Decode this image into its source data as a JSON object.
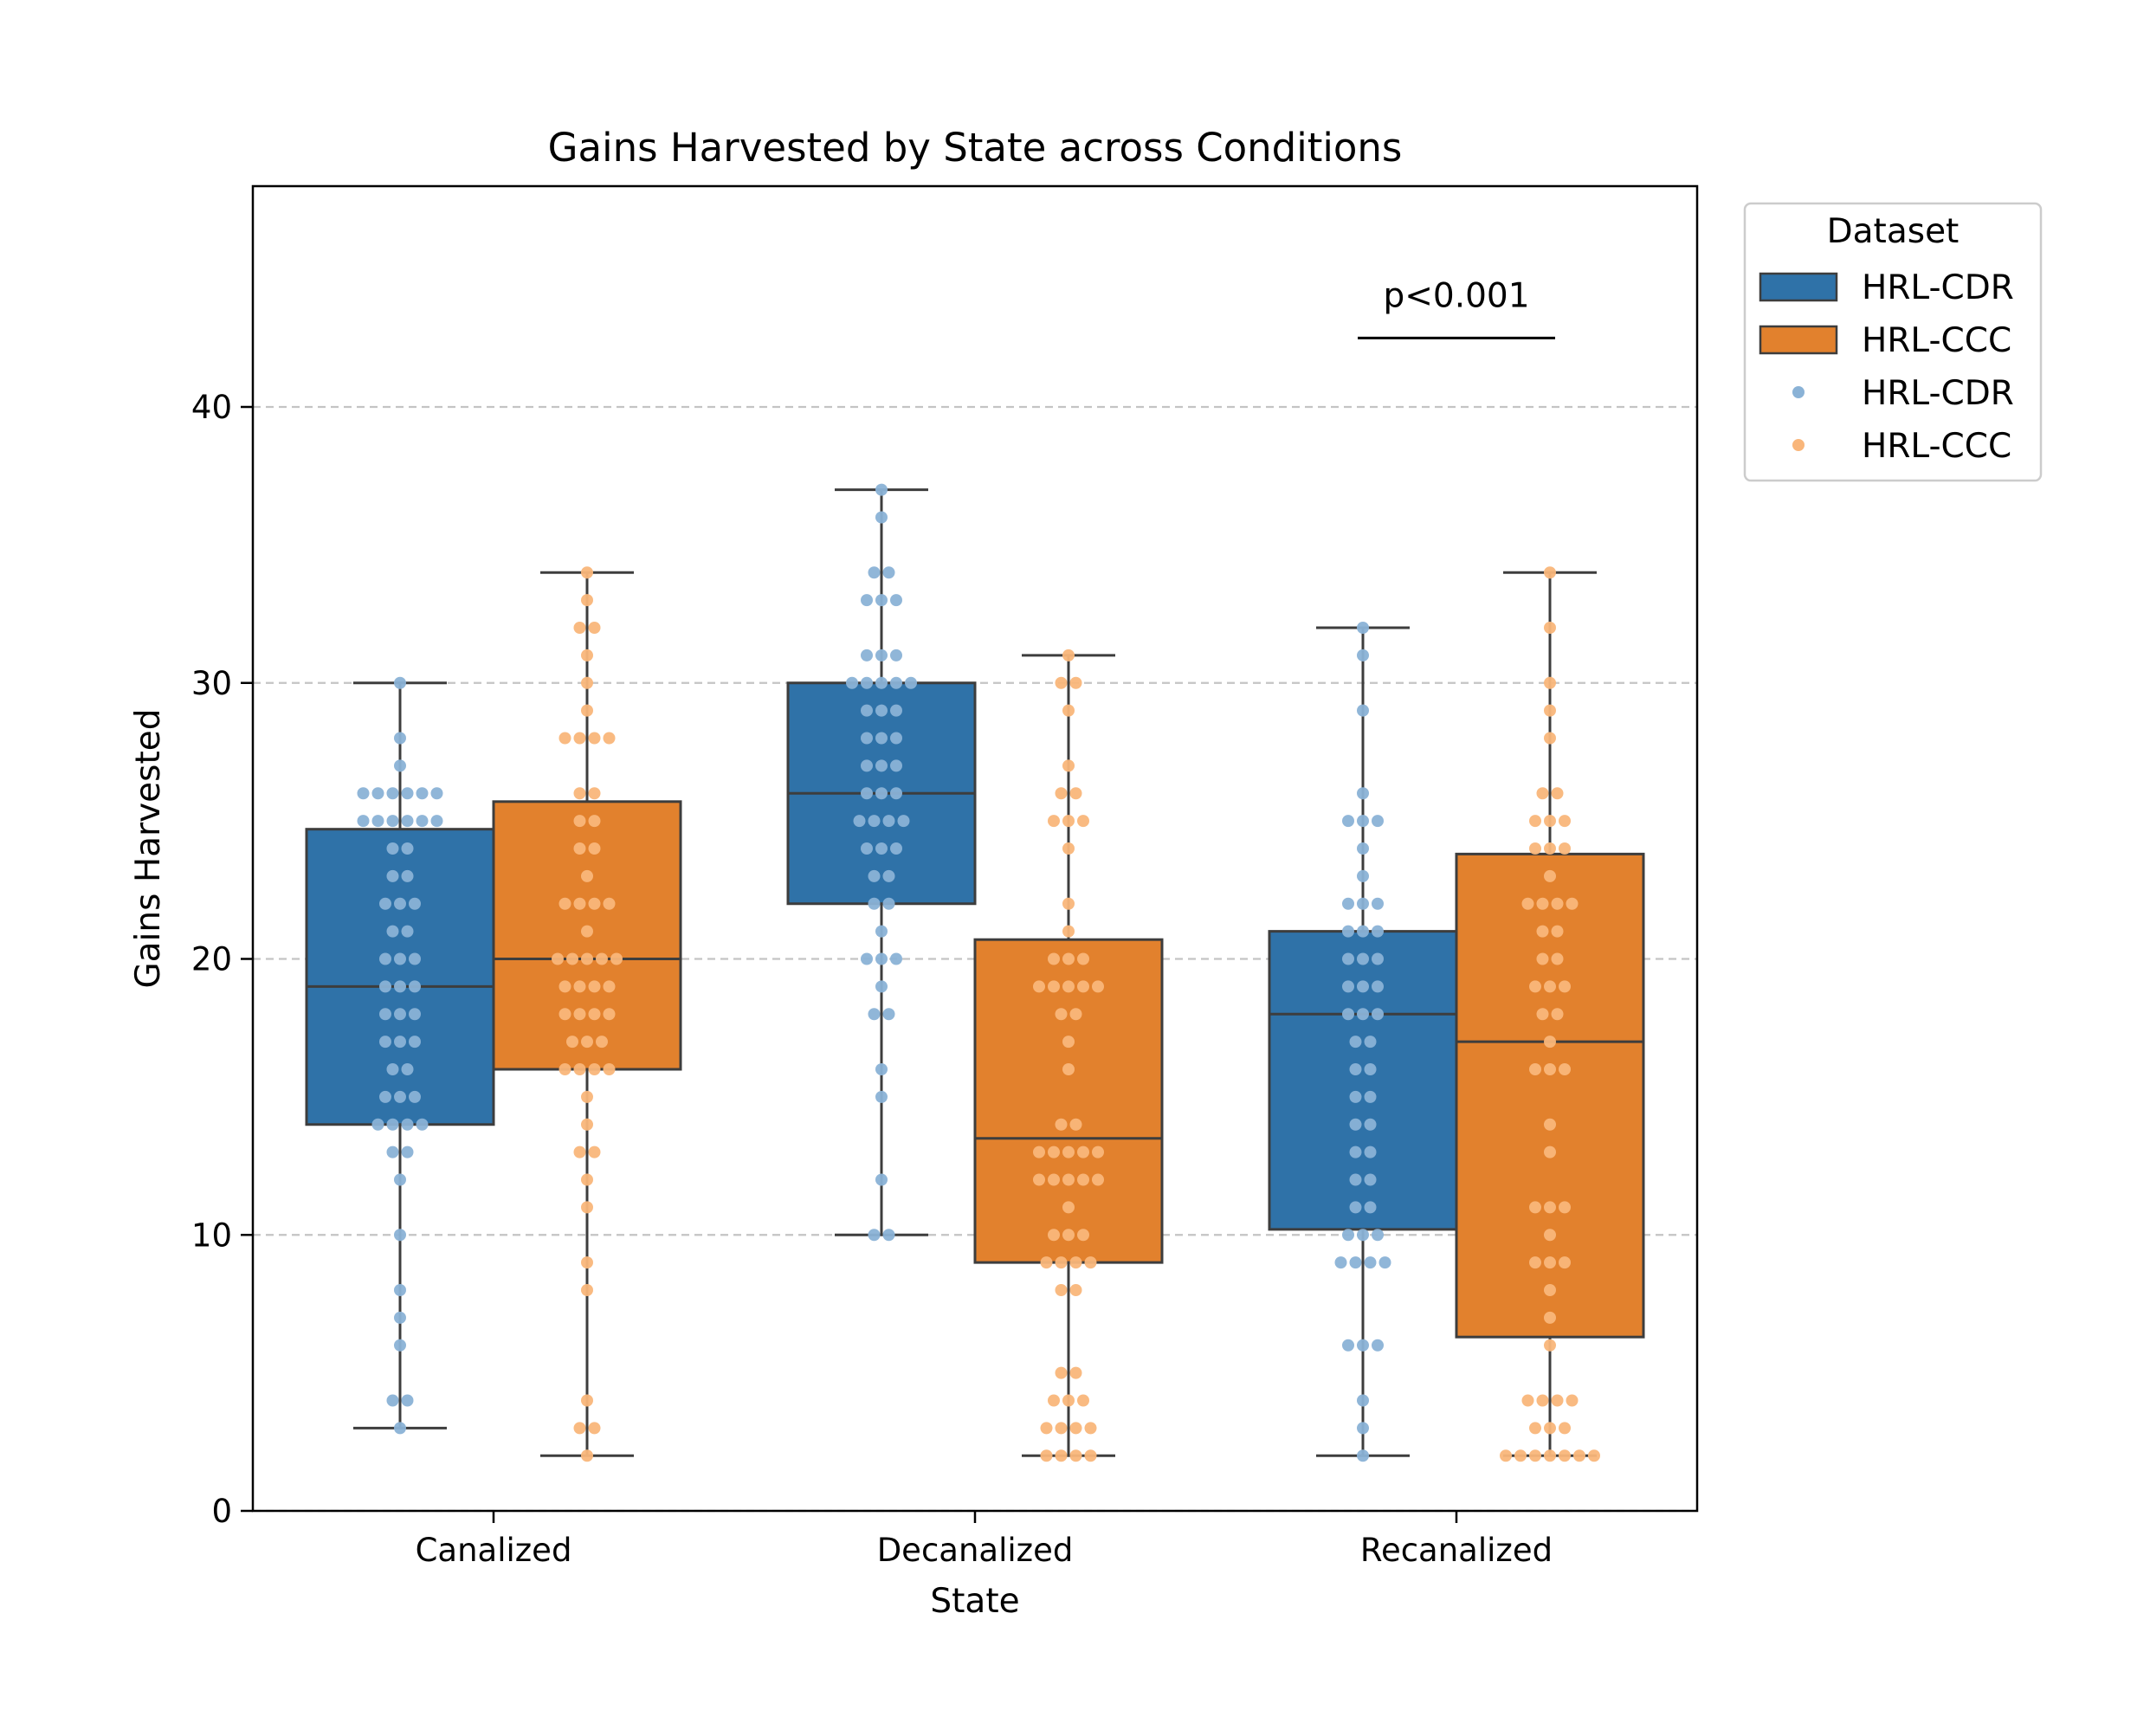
{
  "chart_data": {
    "type": "box",
    "title": "Gains Harvested by State across Conditions",
    "xlabel": "State",
    "ylabel": "Gains Harvested",
    "categories": [
      "Canalized",
      "Decanalized",
      "Recanalized"
    ],
    "ylim": [
      0,
      48
    ],
    "yticks": [
      0,
      10,
      20,
      30,
      40
    ],
    "grid": "y-dashed",
    "legend": {
      "title": "Dataset",
      "placement": "outside-top-right",
      "entries": [
        {
          "label": "HRL-CDR",
          "kind": "box"
        },
        {
          "label": "HRL-CCC",
          "kind": "box"
        },
        {
          "label": "HRL-CDR",
          "kind": "point"
        },
        {
          "label": "HRL-CCC",
          "kind": "point"
        }
      ]
    },
    "annotation": {
      "text": "p<0.001",
      "category": "Recanalized",
      "y": 42.5
    },
    "colors": {
      "box_cdr": "#2f72a8",
      "box_ccc": "#e2812d",
      "point_cdr": "#8ab2d6",
      "point_ccc": "#f9b67a",
      "edge": "#3d3d3d",
      "grid": "#c4c4c4"
    },
    "series": [
      {
        "name": "HRL-CDR",
        "boxes": [
          {
            "category": "Canalized",
            "whisker_low": 3,
            "q1": 14,
            "median": 19,
            "q3": 24.7,
            "whisker_high": 30,
            "points": [
              3,
              4,
              4,
              6,
              7,
              8,
              10,
              12,
              13,
              13,
              14,
              14,
              14,
              14,
              15,
              15,
              15,
              16,
              16,
              17,
              17,
              17,
              18,
              18,
              18,
              19,
              19,
              19,
              20,
              20,
              20,
              21,
              21,
              22,
              22,
              22,
              23,
              23,
              24,
              24,
              25,
              25,
              25,
              25,
              25,
              25,
              26,
              26,
              26,
              26,
              26,
              26,
              27,
              28,
              30
            ]
          },
          {
            "category": "Decanalized",
            "whisker_low": 10,
            "q1": 22,
            "median": 26,
            "q3": 30,
            "whisker_high": 37,
            "points": [
              10,
              10,
              12,
              15,
              16,
              18,
              18,
              19,
              20,
              20,
              20,
              21,
              22,
              22,
              23,
              23,
              24,
              24,
              24,
              25,
              25,
              25,
              25,
              26,
              26,
              26,
              27,
              27,
              27,
              28,
              28,
              28,
              29,
              29,
              29,
              30,
              30,
              30,
              30,
              30,
              31,
              31,
              31,
              33,
              33,
              33,
              34,
              34,
              36,
              37
            ]
          },
          {
            "category": "Recanalized",
            "whisker_low": 2,
            "q1": 10.2,
            "median": 18,
            "q3": 21,
            "whisker_high": 32,
            "points": [
              2,
              3,
              4,
              6,
              6,
              6,
              9,
              9,
              9,
              9,
              10,
              10,
              10,
              11,
              11,
              12,
              12,
              13,
              13,
              14,
              14,
              15,
              15,
              16,
              16,
              17,
              17,
              18,
              18,
              18,
              19,
              19,
              19,
              20,
              20,
              20,
              21,
              21,
              21,
              22,
              22,
              22,
              23,
              24,
              25,
              25,
              25,
              26,
              29,
              31,
              32
            ]
          }
        ]
      },
      {
        "name": "HRL-CCC",
        "boxes": [
          {
            "category": "Canalized",
            "whisker_low": 2,
            "q1": 16,
            "median": 20,
            "q3": 25.7,
            "whisker_high": 34,
            "points": [
              2,
              3,
              3,
              4,
              8,
              9,
              11,
              12,
              13,
              13,
              14,
              15,
              16,
              16,
              16,
              16,
              17,
              17,
              17,
              18,
              18,
              18,
              18,
              19,
              19,
              19,
              19,
              20,
              20,
              20,
              20,
              20,
              21,
              22,
              22,
              22,
              22,
              23,
              24,
              24,
              25,
              25,
              26,
              26,
              28,
              28,
              28,
              28,
              29,
              30,
              31,
              32,
              32,
              33,
              34
            ]
          },
          {
            "category": "Decanalized",
            "whisker_low": 2,
            "q1": 9,
            "median": 13.5,
            "q3": 20.7,
            "whisker_high": 31,
            "points": [
              2,
              2,
              2,
              2,
              3,
              3,
              3,
              3,
              4,
              4,
              4,
              5,
              5,
              8,
              8,
              9,
              9,
              9,
              9,
              10,
              10,
              10,
              11,
              12,
              12,
              12,
              12,
              12,
              13,
              13,
              13,
              13,
              13,
              14,
              14,
              16,
              17,
              18,
              18,
              19,
              19,
              19,
              19,
              19,
              20,
              20,
              20,
              21,
              22,
              24,
              25,
              25,
              25,
              26,
              26,
              27,
              29,
              30,
              30,
              31
            ]
          },
          {
            "category": "Recanalized",
            "whisker_low": 2,
            "q1": 6.3,
            "median": 17,
            "q3": 23.8,
            "whisker_high": 34,
            "points": [
              2,
              2,
              2,
              2,
              2,
              2,
              2,
              3,
              3,
              3,
              4,
              4,
              4,
              4,
              6,
              7,
              8,
              9,
              9,
              9,
              10,
              11,
              11,
              11,
              13,
              14,
              16,
              16,
              16,
              17,
              18,
              18,
              19,
              19,
              19,
              20,
              20,
              21,
              21,
              22,
              22,
              22,
              22,
              23,
              24,
              24,
              24,
              25,
              25,
              25,
              26,
              26,
              28,
              29,
              30,
              32,
              34
            ]
          }
        ]
      }
    ]
  }
}
